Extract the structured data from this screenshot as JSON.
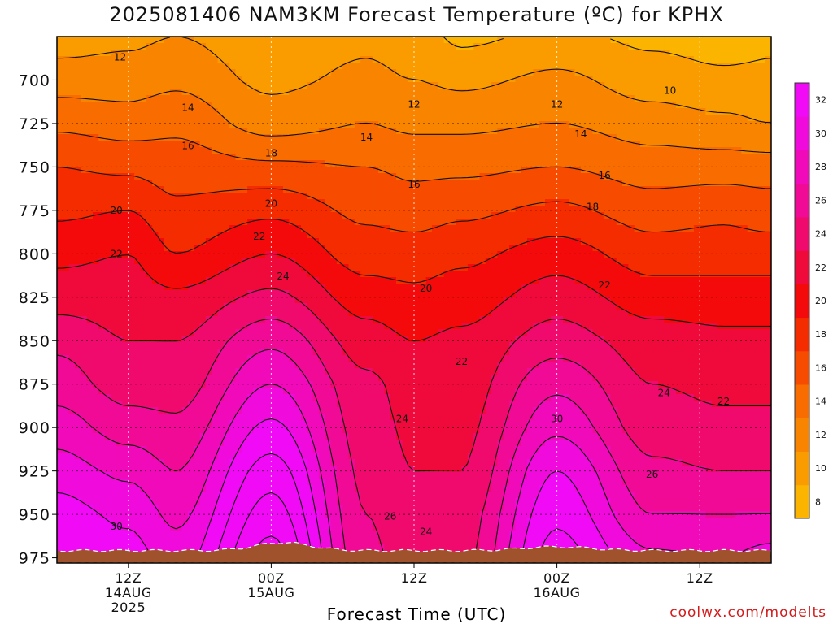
{
  "title": "2025081406 NAM3KM Forecast Temperature (ºC) for KPHX",
  "watermark": "coolwx.com/modelts",
  "chart_data": {
    "type": "contour",
    "title": "2025081406 NAM3KM Forecast Temperature (ºC) for KPHX",
    "xlabel": "Forecast Time (UTC)",
    "ylabel": "",
    "x_ticks": [
      {
        "hour": 6,
        "label": [
          "12Z",
          "14AUG",
          "2025"
        ]
      },
      {
        "hour": 18,
        "label": [
          "00Z",
          "15AUG"
        ]
      },
      {
        "hour": 30,
        "label": [
          "12Z"
        ]
      },
      {
        "hour": 42,
        "label": [
          "00Z",
          "16AUG"
        ]
      },
      {
        "hour": 54,
        "label": [
          "12Z"
        ]
      }
    ],
    "xlim": [
      0,
      60
    ],
    "y_ticks": [
      700,
      725,
      750,
      775,
      800,
      825,
      850,
      875,
      900,
      925,
      950,
      975
    ],
    "ylim": [
      675,
      978
    ],
    "y_reversed": true,
    "grid": true,
    "colorbar": {
      "ticks": [
        8,
        10,
        12,
        14,
        16,
        18,
        20,
        22,
        24,
        26,
        28,
        30,
        32
      ],
      "colors": {
        "8": "#fbb400",
        "10": "#fa9c00",
        "12": "#f98400",
        "14": "#f86c00",
        "16": "#f74c00",
        "18": "#f52c00",
        "20": "#f40a0a",
        "22": "#f00a3c",
        "24": "#f00a6e",
        "26": "#f00a96",
        "28": "#f00ab9",
        "30": "#f00adc",
        "32": "#f00af5"
      }
    },
    "contour_interval": 2,
    "profiles_pressure_hpa": [
      675,
      700,
      725,
      750,
      775,
      800,
      825,
      850,
      875,
      900,
      925,
      950,
      975
    ],
    "profiles": [
      {
        "hour": 0,
        "temps": [
          11.0,
          13.0,
          15.5,
          18.0,
          19.5,
          21.5,
          23.0,
          25.5,
          27.0,
          29.0,
          31.0,
          33.0,
          34.0
        ]
      },
      {
        "hour": 6,
        "temps": [
          11.5,
          13.0,
          15.0,
          17.5,
          20.0,
          22.0,
          23.0,
          24.0,
          25.0,
          27.0,
          29.5,
          31.5,
          33.0
        ]
      },
      {
        "hour": 10,
        "temps": [
          12.0,
          13.5,
          15.5,
          17.0,
          18.5,
          20.0,
          22.5,
          24.0,
          25.0,
          26.5,
          28.0,
          29.5,
          31.0
        ]
      },
      {
        "hour": 18,
        "temps": [
          10.5,
          11.5,
          13.0,
          16.5,
          19.5,
          22.0,
          24.5,
          27.5,
          30.0,
          32.5,
          35.0,
          37.0,
          39.0
        ]
      },
      {
        "hour": 26,
        "temps": [
          11.5,
          12.5,
          14.0,
          16.0,
          17.5,
          19.0,
          21.0,
          23.0,
          24.5,
          25.0,
          25.5,
          26.0,
          26.5
        ]
      },
      {
        "hour": 30,
        "temps": [
          11.0,
          12.0,
          13.5,
          15.5,
          17.0,
          19.0,
          20.5,
          22.0,
          23.0,
          23.5,
          24.0,
          24.5,
          25.0
        ]
      },
      {
        "hour": 34,
        "temps": [
          9.5,
          11.5,
          13.5,
          15.5,
          17.5,
          19.5,
          21.0,
          22.5,
          23.0,
          23.5,
          24.0,
          25.0,
          25.5
        ]
      },
      {
        "hour": 42,
        "temps": [
          10.5,
          12.5,
          14.0,
          16.0,
          18.5,
          21.0,
          23.0,
          25.0,
          27.5,
          29.5,
          32.0,
          33.5,
          35.0
        ]
      },
      {
        "hour": 50,
        "temps": [
          9.5,
          11.0,
          13.0,
          15.0,
          17.0,
          19.0,
          21.0,
          23.0,
          24.0,
          25.0,
          26.5,
          28.0,
          30.5
        ]
      },
      {
        "hour": 56,
        "temps": [
          9.0,
          10.5,
          12.5,
          15.0,
          17.5,
          19.0,
          21.0,
          22.5,
          23.5,
          24.5,
          26.0,
          28.0,
          30.0
        ]
      },
      {
        "hour": 60,
        "temps": [
          9.5,
          10.5,
          12.0,
          15.0,
          17.0,
          19.0,
          21.0,
          22.5,
          23.5,
          24.5,
          26.0,
          28.0,
          31.0
        ]
      }
    ],
    "contour_labels": [
      {
        "text": "12",
        "hour": 5.3,
        "p": 687
      },
      {
        "text": "14",
        "hour": 11.0,
        "p": 716
      },
      {
        "text": "16",
        "hour": 11.0,
        "p": 738
      },
      {
        "text": "18",
        "hour": 18.0,
        "p": 742
      },
      {
        "text": "20",
        "hour": 5.0,
        "p": 775
      },
      {
        "text": "20",
        "hour": 18.0,
        "p": 771
      },
      {
        "text": "22",
        "hour": 5.0,
        "p": 800
      },
      {
        "text": "22",
        "hour": 17.0,
        "p": 790
      },
      {
        "text": "24",
        "hour": 19.0,
        "p": 813
      },
      {
        "text": "12",
        "hour": 30.0,
        "p": 714
      },
      {
        "text": "14",
        "hour": 26.0,
        "p": 733
      },
      {
        "text": "16",
        "hour": 30.0,
        "p": 760
      },
      {
        "text": "20",
        "hour": 31.0,
        "p": 820
      },
      {
        "text": "22",
        "hour": 34.0,
        "p": 862
      },
      {
        "text": "24",
        "hour": 29.0,
        "p": 895
      },
      {
        "text": "26",
        "hour": 28.0,
        "p": 951
      },
      {
        "text": "24",
        "hour": 31.0,
        "p": 960
      },
      {
        "text": "30",
        "hour": 5.0,
        "p": 957
      },
      {
        "text": "12",
        "hour": 42.0,
        "p": 714
      },
      {
        "text": "14",
        "hour": 44.0,
        "p": 731
      },
      {
        "text": "16",
        "hour": 46.0,
        "p": 755
      },
      {
        "text": "18",
        "hour": 45.0,
        "p": 773
      },
      {
        "text": "22",
        "hour": 46.0,
        "p": 818
      },
      {
        "text": "30",
        "hour": 42.0,
        "p": 895
      },
      {
        "text": "10",
        "hour": 51.5,
        "p": 706
      },
      {
        "text": "24",
        "hour": 51.0,
        "p": 880
      },
      {
        "text": "26",
        "hour": 50.0,
        "p": 927
      },
      {
        "text": "22",
        "hour": 56.0,
        "p": 885
      }
    ],
    "terrain_color": "#a0522d"
  }
}
